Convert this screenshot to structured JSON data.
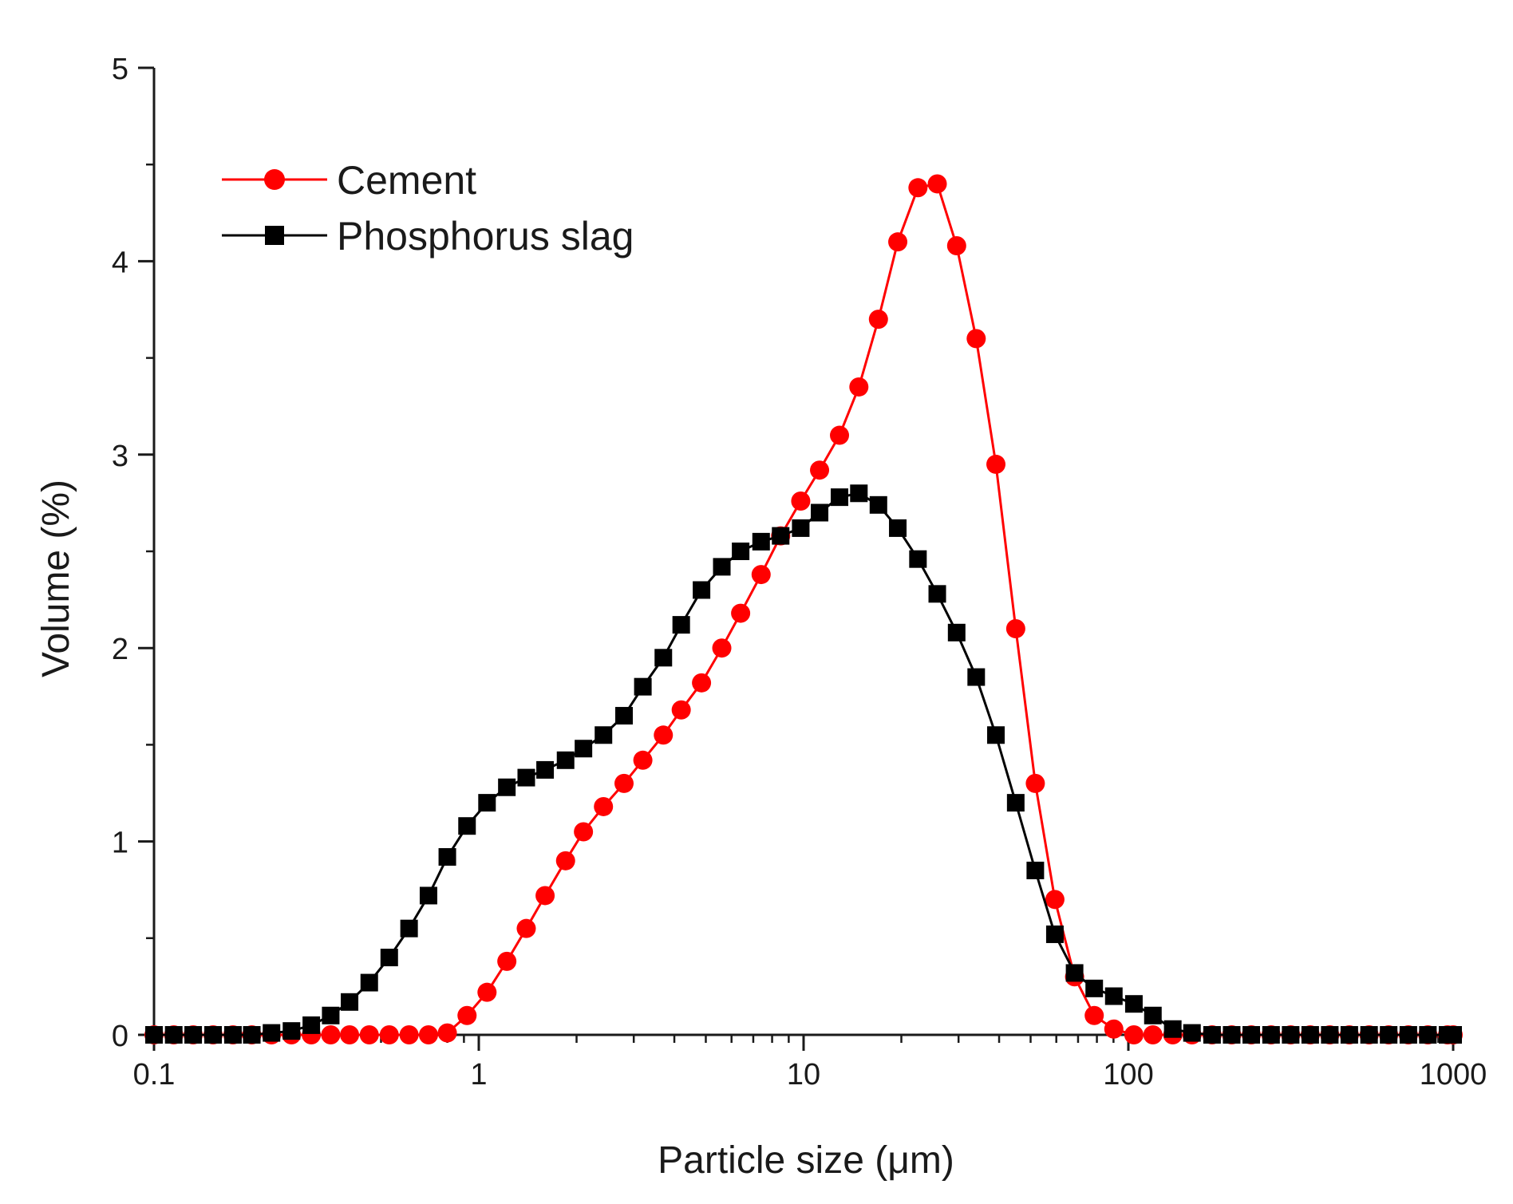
{
  "chart_data": {
    "type": "line",
    "title": "",
    "xlabel": "Particle size (μm)",
    "ylabel": "Volume (%)",
    "xscale": "log",
    "xlim": [
      0.1,
      1000
    ],
    "ylim": [
      0,
      5
    ],
    "xticks": [
      0.1,
      1,
      10,
      100,
      1000
    ],
    "xtick_labels": [
      "0.1",
      "1",
      "10",
      "100",
      "1000"
    ],
    "yticks": [
      0,
      1,
      2,
      3,
      4,
      5
    ],
    "ytick_labels": [
      "0",
      "1",
      "2",
      "3",
      "4",
      "5"
    ],
    "legend": {
      "position": "top-left"
    },
    "series": [
      {
        "name": "Cement",
        "color": "#ff0000",
        "marker": "circle",
        "x": [
          0.1,
          0.115,
          0.132,
          0.152,
          0.175,
          0.2,
          0.23,
          0.265,
          0.305,
          0.35,
          0.4,
          0.46,
          0.53,
          0.61,
          0.7,
          0.8,
          0.92,
          1.06,
          1.22,
          1.4,
          1.6,
          1.85,
          2.1,
          2.42,
          2.8,
          3.2,
          3.7,
          4.2,
          4.85,
          5.6,
          6.4,
          7.4,
          8.5,
          9.8,
          11.2,
          12.9,
          14.8,
          17.0,
          19.5,
          22.5,
          25.8,
          29.6,
          34.0,
          39.1,
          45.0,
          51.7,
          59.4,
          68.3,
          78.5,
          90.2,
          104,
          119,
          137,
          157,
          181,
          208,
          239,
          275,
          316,
          363,
          417,
          479,
          551,
          633,
          728,
          836,
          961,
          1000
        ],
        "values": [
          0,
          0,
          0,
          0,
          0,
          0,
          0,
          0,
          0,
          0,
          0,
          0,
          0,
          0,
          0,
          0.01,
          0.1,
          0.22,
          0.38,
          0.55,
          0.72,
          0.9,
          1.05,
          1.18,
          1.3,
          1.42,
          1.55,
          1.68,
          1.82,
          2.0,
          2.18,
          2.38,
          2.58,
          2.76,
          2.92,
          3.1,
          3.35,
          3.7,
          4.1,
          4.38,
          4.4,
          4.08,
          3.6,
          2.95,
          2.1,
          1.3,
          0.7,
          0.3,
          0.1,
          0.03,
          0,
          0,
          0,
          0,
          0,
          0,
          0,
          0,
          0,
          0,
          0,
          0,
          0,
          0,
          0,
          0,
          0,
          0
        ]
      },
      {
        "name": "Phosphorus slag",
        "color": "#000000",
        "marker": "square",
        "x": [
          0.1,
          0.115,
          0.132,
          0.152,
          0.175,
          0.2,
          0.23,
          0.265,
          0.305,
          0.35,
          0.4,
          0.46,
          0.53,
          0.61,
          0.7,
          0.8,
          0.92,
          1.06,
          1.22,
          1.4,
          1.6,
          1.85,
          2.1,
          2.42,
          2.8,
          3.2,
          3.7,
          4.2,
          4.85,
          5.6,
          6.4,
          7.4,
          8.5,
          9.8,
          11.2,
          12.9,
          14.8,
          17.0,
          19.5,
          22.5,
          25.8,
          29.6,
          34.0,
          39.1,
          45.0,
          51.7,
          59.4,
          68.3,
          78.5,
          90.2,
          104,
          119,
          137,
          157,
          181,
          208,
          239,
          275,
          316,
          363,
          417,
          479,
          551,
          633,
          728,
          836,
          961,
          1000
        ],
        "values": [
          0,
          0,
          0,
          0,
          0,
          0,
          0.01,
          0.02,
          0.05,
          0.1,
          0.17,
          0.27,
          0.4,
          0.55,
          0.72,
          0.92,
          1.08,
          1.2,
          1.28,
          1.33,
          1.37,
          1.42,
          1.48,
          1.55,
          1.65,
          1.8,
          1.95,
          2.12,
          2.3,
          2.42,
          2.5,
          2.55,
          2.58,
          2.62,
          2.7,
          2.78,
          2.8,
          2.74,
          2.62,
          2.46,
          2.28,
          2.08,
          1.85,
          1.55,
          1.2,
          0.85,
          0.52,
          0.32,
          0.24,
          0.2,
          0.16,
          0.1,
          0.03,
          0.01,
          0,
          0,
          0,
          0,
          0,
          0,
          0,
          0,
          0,
          0,
          0,
          0,
          0,
          0
        ]
      }
    ]
  }
}
